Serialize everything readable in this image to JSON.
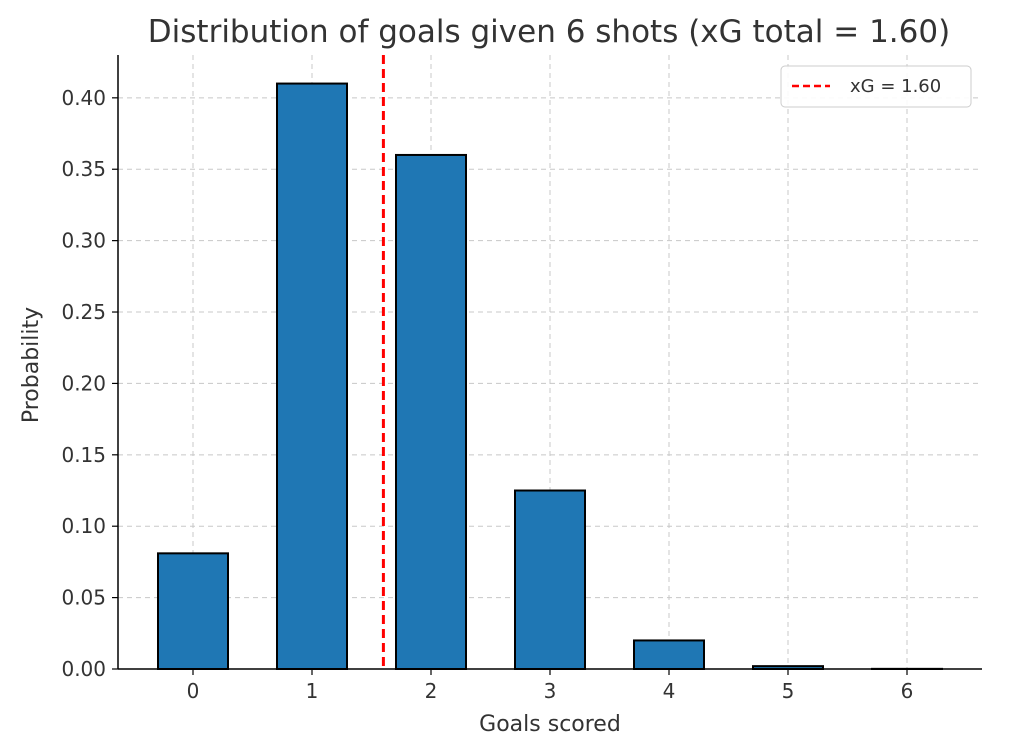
{
  "chart_data": {
    "type": "bar",
    "title": "Distribution of goals given 6 shots (xG total = 1.60)",
    "xlabel": "Goals scored",
    "ylabel": "Probability",
    "categories": [
      "0",
      "1",
      "2",
      "3",
      "4",
      "5",
      "6"
    ],
    "values": [
      0.081,
      0.41,
      0.36,
      0.125,
      0.02,
      0.002,
      0.0001
    ],
    "ylim": [
      0,
      0.43
    ],
    "yticks": [
      "0.00",
      "0.05",
      "0.10",
      "0.15",
      "0.20",
      "0.25",
      "0.30",
      "0.35",
      "0.40"
    ],
    "reference_line": {
      "x": 1.6,
      "label": "xG = 1.60",
      "style": "dashed",
      "color": "#ff0000"
    },
    "bar_color": "#1f77b4",
    "bar_edge_color": "#000000",
    "grid": true,
    "grid_style": "dashed",
    "legend_position": "top-right"
  }
}
